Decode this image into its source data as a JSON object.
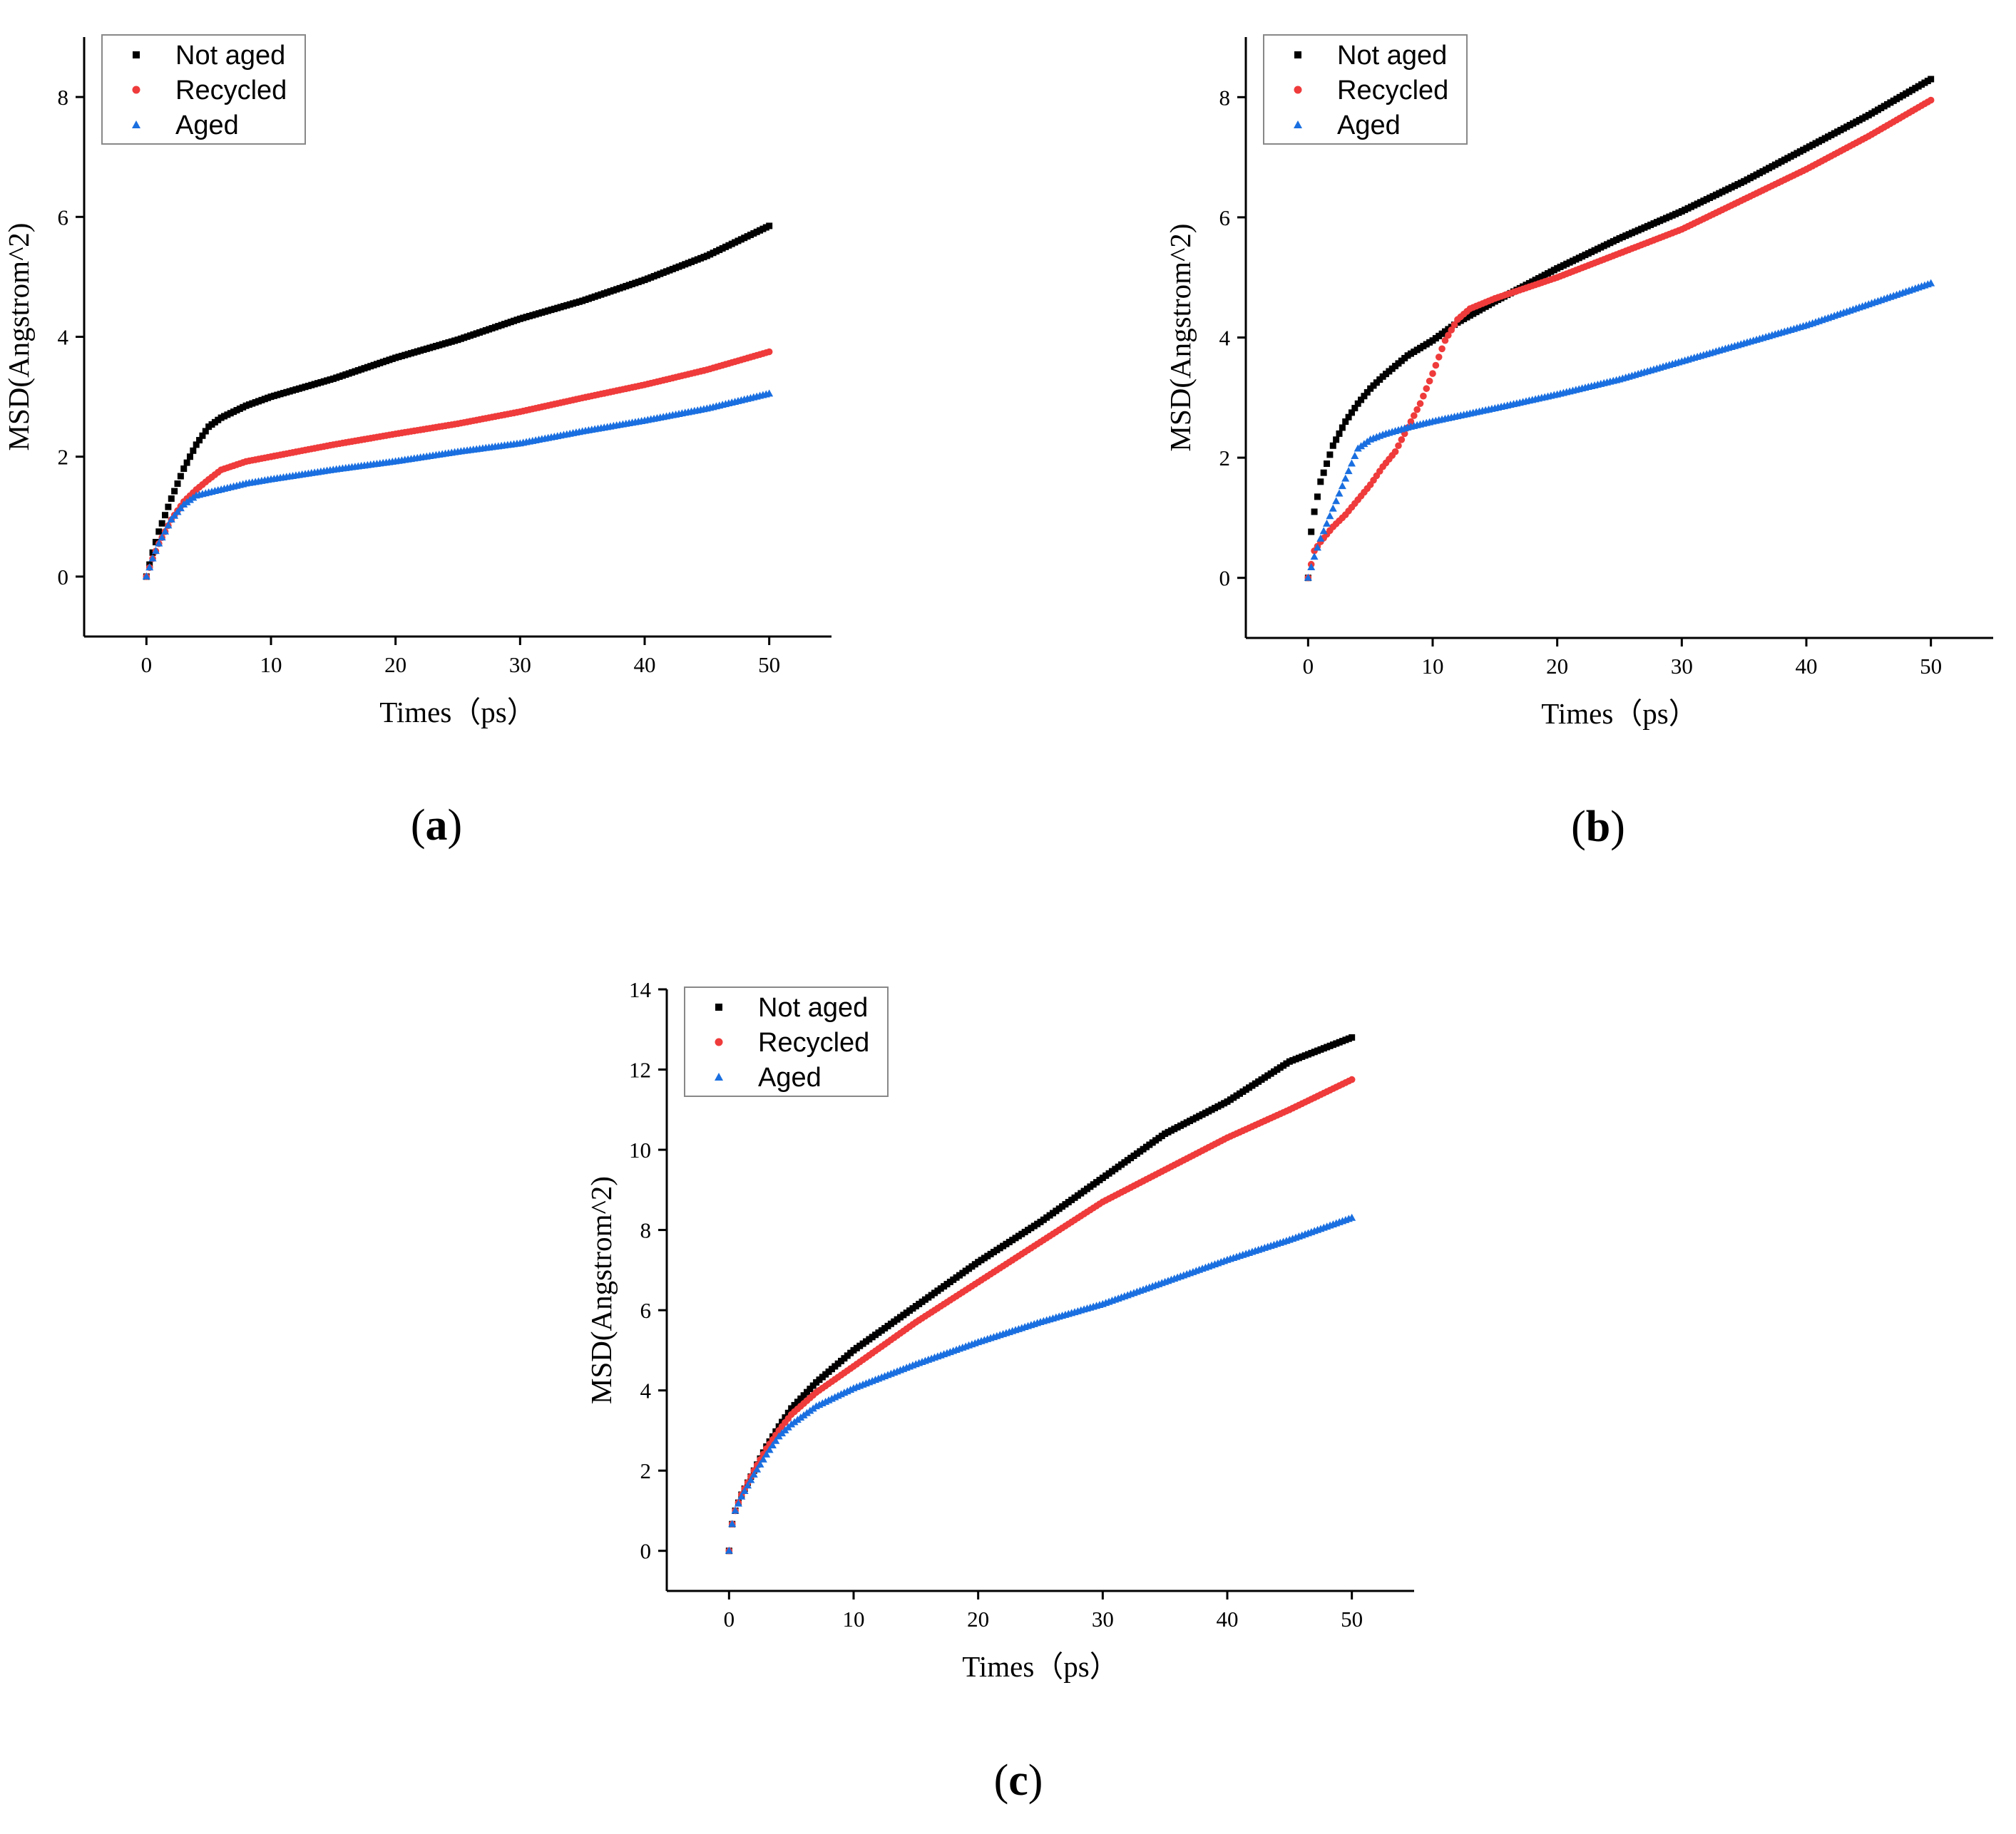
{
  "chart_data": [
    {
      "type": "scatter",
      "panel_label": "a",
      "xlabel": "Times（ps）",
      "ylabel": "MSD(Angstrom^2)",
      "xlim": [
        -5,
        55
      ],
      "ylim": [
        -1,
        9
      ],
      "xticks": [
        0,
        10,
        20,
        30,
        40,
        50
      ],
      "yticks": [
        0,
        2,
        4,
        6,
        8
      ],
      "legend": {
        "position": "top-left"
      },
      "series": [
        {
          "name": "Not aged",
          "color": "#000000",
          "marker": "square",
          "points": [
            [
              0,
              0
            ],
            [
              0.5,
              0.4
            ],
            [
              1,
              0.75
            ],
            [
              2,
              1.3
            ],
            [
              3,
              1.8
            ],
            [
              4,
              2.2
            ],
            [
              5,
              2.5
            ],
            [
              6,
              2.65
            ],
            [
              8,
              2.85
            ],
            [
              10,
              3.0
            ],
            [
              15,
              3.3
            ],
            [
              20,
              3.65
            ],
            [
              25,
              3.95
            ],
            [
              30,
              4.3
            ],
            [
              35,
              4.6
            ],
            [
              40,
              4.95
            ],
            [
              45,
              5.35
            ],
            [
              50,
              5.85
            ]
          ]
        },
        {
          "name": "Recycled",
          "color": "#ef3b3b",
          "marker": "circle",
          "points": [
            [
              0,
              0
            ],
            [
              0.5,
              0.3
            ],
            [
              1,
              0.55
            ],
            [
              2,
              0.95
            ],
            [
              3,
              1.25
            ],
            [
              4,
              1.45
            ],
            [
              5,
              1.62
            ],
            [
              6,
              1.78
            ],
            [
              8,
              1.92
            ],
            [
              10,
              2.0
            ],
            [
              15,
              2.2
            ],
            [
              20,
              2.38
            ],
            [
              25,
              2.55
            ],
            [
              30,
              2.75
            ],
            [
              35,
              2.98
            ],
            [
              40,
              3.2
            ],
            [
              45,
              3.45
            ],
            [
              50,
              3.75
            ]
          ]
        },
        {
          "name": "Aged",
          "color": "#1a6fe0",
          "marker": "triangle",
          "points": [
            [
              0,
              0
            ],
            [
              0.5,
              0.3
            ],
            [
              1,
              0.55
            ],
            [
              2,
              0.95
            ],
            [
              3,
              1.2
            ],
            [
              4,
              1.35
            ],
            [
              5,
              1.4
            ],
            [
              6,
              1.45
            ],
            [
              8,
              1.55
            ],
            [
              10,
              1.62
            ],
            [
              15,
              1.78
            ],
            [
              20,
              1.92
            ],
            [
              25,
              2.08
            ],
            [
              30,
              2.22
            ],
            [
              35,
              2.42
            ],
            [
              40,
              2.6
            ],
            [
              45,
              2.8
            ],
            [
              50,
              3.05
            ]
          ]
        }
      ]
    },
    {
      "type": "scatter",
      "panel_label": "b",
      "xlabel": "Times（ps）",
      "ylabel": "MSD(Angstrom^2)",
      "xlim": [
        -5,
        55
      ],
      "ylim": [
        -1,
        9
      ],
      "xticks": [
        0,
        10,
        20,
        30,
        40,
        50
      ],
      "yticks": [
        0,
        2,
        4,
        6,
        8
      ],
      "legend": {
        "position": "top-left"
      },
      "series": [
        {
          "name": "Not aged",
          "color": "#000000",
          "marker": "square",
          "points": [
            [
              0,
              0
            ],
            [
              0.2,
              0.7
            ],
            [
              0.5,
              1.1
            ],
            [
              1,
              1.6
            ],
            [
              2,
              2.2
            ],
            [
              3,
              2.6
            ],
            [
              4,
              2.9
            ],
            [
              5,
              3.15
            ],
            [
              6,
              3.35
            ],
            [
              8,
              3.7
            ],
            [
              10,
              3.95
            ],
            [
              12,
              4.25
            ],
            [
              15,
              4.6
            ],
            [
              20,
              5.15
            ],
            [
              25,
              5.65
            ],
            [
              30,
              6.1
            ],
            [
              35,
              6.6
            ],
            [
              40,
              7.15
            ],
            [
              45,
              7.7
            ],
            [
              50,
              8.3
            ]
          ]
        },
        {
          "name": "Recycled",
          "color": "#ef3b3b",
          "marker": "circle",
          "points": [
            [
              0,
              0
            ],
            [
              0.5,
              0.45
            ],
            [
              1,
              0.6
            ],
            [
              2,
              0.85
            ],
            [
              3,
              1.05
            ],
            [
              4,
              1.3
            ],
            [
              5,
              1.55
            ],
            [
              6,
              1.85
            ],
            [
              7,
              2.1
            ],
            [
              8,
              2.5
            ],
            [
              9,
              2.9
            ],
            [
              10,
              3.4
            ],
            [
              11,
              3.95
            ],
            [
              12,
              4.3
            ],
            [
              13,
              4.48
            ],
            [
              15,
              4.65
            ],
            [
              20,
              5.0
            ],
            [
              25,
              5.4
            ],
            [
              30,
              5.8
            ],
            [
              35,
              6.3
            ],
            [
              40,
              6.8
            ],
            [
              45,
              7.35
            ],
            [
              50,
              7.95
            ]
          ]
        },
        {
          "name": "Aged",
          "color": "#1a6fe0",
          "marker": "triangle",
          "points": [
            [
              0,
              0
            ],
            [
              0.5,
              0.35
            ],
            [
              1,
              0.65
            ],
            [
              2,
              1.15
            ],
            [
              3,
              1.65
            ],
            [
              4,
              2.15
            ],
            [
              5,
              2.3
            ],
            [
              6,
              2.38
            ],
            [
              8,
              2.5
            ],
            [
              10,
              2.6
            ],
            [
              15,
              2.82
            ],
            [
              20,
              3.05
            ],
            [
              25,
              3.3
            ],
            [
              30,
              3.6
            ],
            [
              35,
              3.9
            ],
            [
              40,
              4.2
            ],
            [
              45,
              4.55
            ],
            [
              50,
              4.9
            ]
          ]
        }
      ]
    },
    {
      "type": "scatter",
      "panel_label": "c",
      "xlabel": "Times（ps）",
      "ylabel": "MSD(Angstrom^2)",
      "xlim": [
        -5,
        55
      ],
      "ylim": [
        -1,
        14
      ],
      "xticks": [
        0,
        10,
        20,
        30,
        40,
        50
      ],
      "yticks": [
        0,
        2,
        4,
        6,
        8,
        10,
        12,
        14
      ],
      "legend": {
        "position": "top-left"
      },
      "series": [
        {
          "name": "Not aged",
          "color": "#000000",
          "marker": "square",
          "points": [
            [
              0,
              0
            ],
            [
              0.2,
              0.6
            ],
            [
              0.5,
              1.0
            ],
            [
              1,
              1.4
            ],
            [
              2,
              2.0
            ],
            [
              3,
              2.6
            ],
            [
              4,
              3.1
            ],
            [
              5,
              3.55
            ],
            [
              7,
              4.2
            ],
            [
              10,
              5.0
            ],
            [
              15,
              6.1
            ],
            [
              20,
              7.2
            ],
            [
              25,
              8.2
            ],
            [
              30,
              9.3
            ],
            [
              35,
              10.4
            ],
            [
              40,
              11.2
            ],
            [
              45,
              12.2
            ],
            [
              50,
              12.8
            ]
          ]
        },
        {
          "name": "Recycled",
          "color": "#ef3b3b",
          "marker": "circle",
          "points": [
            [
              0,
              0
            ],
            [
              0.2,
              0.6
            ],
            [
              0.5,
              1.0
            ],
            [
              1,
              1.4
            ],
            [
              2,
              2.0
            ],
            [
              3,
              2.55
            ],
            [
              4,
              3.0
            ],
            [
              5,
              3.4
            ],
            [
              7,
              3.95
            ],
            [
              10,
              4.6
            ],
            [
              15,
              5.7
            ],
            [
              20,
              6.7
            ],
            [
              25,
              7.7
            ],
            [
              30,
              8.7
            ],
            [
              35,
              9.5
            ],
            [
              40,
              10.3
            ],
            [
              45,
              11.0
            ],
            [
              50,
              11.75
            ]
          ]
        },
        {
          "name": "Aged",
          "color": "#1a6fe0",
          "marker": "triangle",
          "points": [
            [
              0,
              0
            ],
            [
              0.2,
              0.6
            ],
            [
              0.5,
              1.0
            ],
            [
              1,
              1.35
            ],
            [
              2,
              1.9
            ],
            [
              3,
              2.4
            ],
            [
              4,
              2.85
            ],
            [
              5,
              3.15
            ],
            [
              7,
              3.6
            ],
            [
              10,
              4.05
            ],
            [
              15,
              4.65
            ],
            [
              20,
              5.2
            ],
            [
              25,
              5.7
            ],
            [
              30,
              6.15
            ],
            [
              35,
              6.7
            ],
            [
              40,
              7.25
            ],
            [
              45,
              7.75
            ],
            [
              50,
              8.3
            ]
          ]
        }
      ]
    }
  ]
}
